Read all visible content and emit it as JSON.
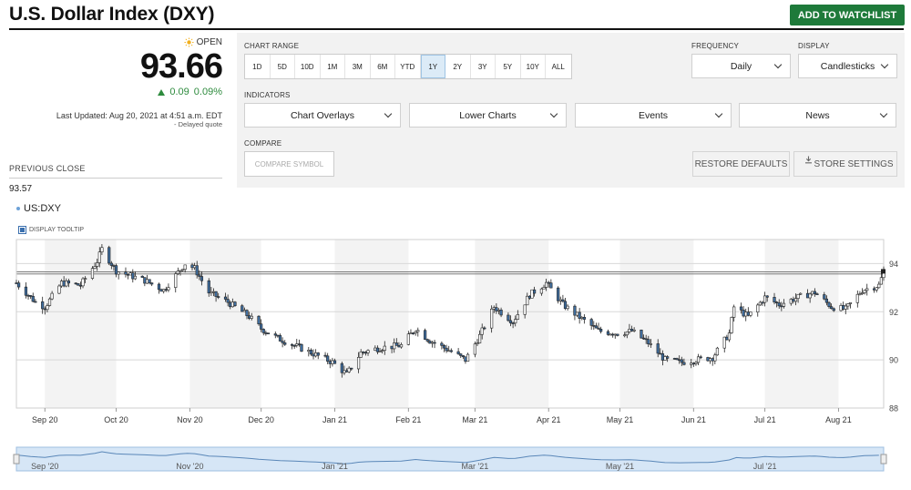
{
  "header": {
    "title": "U.S. Dollar Index (DXY)",
    "watchlist_label": "ADD TO WATCHLIST"
  },
  "quote": {
    "status": "OPEN",
    "price": "93.66",
    "change": "0.09",
    "change_pct": "0.09%",
    "updated": "Last Updated: Aug 20, 2021 at 4:51 a.m. EDT",
    "delayed": "- Delayed quote",
    "prev_close_label": "PREVIOUS CLOSE",
    "prev_close_value": "93.57"
  },
  "controls": {
    "chart_range_label": "CHART RANGE",
    "ranges": [
      "1D",
      "5D",
      "10D",
      "1M",
      "3M",
      "6M",
      "YTD",
      "1Y",
      "2Y",
      "3Y",
      "5Y",
      "10Y",
      "ALL"
    ],
    "active_range": "1Y",
    "frequency_label": "FREQUENCY",
    "frequency_value": "Daily",
    "display_label": "DISPLAY",
    "display_value": "Candlesticks",
    "indicators_label": "INDICATORS",
    "indicators": [
      "Chart Overlays",
      "Lower Charts",
      "Events",
      "News"
    ],
    "compare_label": "COMPARE",
    "compare_placeholder": "COMPARE SYMBOL",
    "restore_label": "RESTORE DEFAULTS",
    "store_label": "STORE SETTINGS"
  },
  "symbol": "US:DXY",
  "tooltip_label": "DISPLAY TOOLTIP",
  "colors": {
    "accent_green": "#1e7a3a",
    "up_green": "#2e8b3e",
    "candle_up": "#ffffff",
    "candle_down": "#3f6d9e",
    "navigator_fill": "#d6e6f6"
  },
  "chart_data": {
    "type": "candlestick",
    "x_start": "2020-08-20",
    "x_end": "2021-08-20",
    "ylim": [
      88,
      95
    ],
    "y_ticks": [
      88,
      90,
      92,
      94
    ],
    "x_tick_labels": [
      "Sep 20",
      "Oct 20",
      "Nov 20",
      "Dec 20",
      "Jan 21",
      "Feb 21",
      "Mar 21",
      "Apr 21",
      "May 21",
      "Jun 21",
      "Jul 21",
      "Aug 21"
    ],
    "x_tick_dates": [
      "2020-09-01",
      "2020-10-01",
      "2020-11-01",
      "2020-12-01",
      "2021-01-01",
      "2021-02-01",
      "2021-03-01",
      "2021-04-01",
      "2021-05-01",
      "2021-06-01",
      "2021-07-01",
      "2021-08-01"
    ],
    "reference_lines": [
      93.57,
      93.66
    ],
    "grid": true,
    "series": [
      {
        "name": "US:DXY",
        "points": [
          [
            "2020-08-20",
            93.2
          ],
          [
            "2020-08-28",
            92.4
          ],
          [
            "2020-09-01",
            92.2
          ],
          [
            "2020-09-08",
            93.2
          ],
          [
            "2020-09-16",
            93.1
          ],
          [
            "2020-09-23",
            94.1
          ],
          [
            "2020-09-25",
            94.6
          ],
          [
            "2020-10-01",
            93.7
          ],
          [
            "2020-10-07",
            93.5
          ],
          [
            "2020-10-13",
            93.3
          ],
          [
            "2020-10-21",
            92.9
          ],
          [
            "2020-10-30",
            94.0
          ],
          [
            "2020-11-03",
            93.8
          ],
          [
            "2020-11-09",
            92.8
          ],
          [
            "2020-11-17",
            92.4
          ],
          [
            "2020-11-26",
            91.8
          ],
          [
            "2020-12-01",
            91.3
          ],
          [
            "2020-12-08",
            90.9
          ],
          [
            "2020-12-15",
            90.6
          ],
          [
            "2020-12-22",
            90.3
          ],
          [
            "2020-12-31",
            89.9
          ],
          [
            "2021-01-06",
            89.4
          ],
          [
            "2021-01-12",
            90.3
          ],
          [
            "2021-01-20",
            90.5
          ],
          [
            "2021-01-29",
            90.6
          ],
          [
            "2021-02-04",
            91.3
          ],
          [
            "2021-02-10",
            90.8
          ],
          [
            "2021-02-18",
            90.4
          ],
          [
            "2021-02-25",
            90.0
          ],
          [
            "2021-03-03",
            91.0
          ],
          [
            "2021-03-09",
            92.2
          ],
          [
            "2021-03-17",
            91.6
          ],
          [
            "2021-03-24",
            92.7
          ],
          [
            "2021-03-31",
            93.2
          ],
          [
            "2021-04-07",
            92.3
          ],
          [
            "2021-04-15",
            91.7
          ],
          [
            "2021-04-22",
            91.2
          ],
          [
            "2021-04-30",
            91.1
          ],
          [
            "2021-05-06",
            91.2
          ],
          [
            "2021-05-13",
            90.7
          ],
          [
            "2021-05-20",
            90.0
          ],
          [
            "2021-05-27",
            89.9
          ],
          [
            "2021-06-02",
            90.0
          ],
          [
            "2021-06-09",
            90.1
          ],
          [
            "2021-06-16",
            91.1
          ],
          [
            "2021-06-18",
            92.2
          ],
          [
            "2021-06-24",
            91.8
          ],
          [
            "2021-07-01",
            92.6
          ],
          [
            "2021-07-07",
            92.3
          ],
          [
            "2021-07-15",
            92.6
          ],
          [
            "2021-07-22",
            92.8
          ],
          [
            "2021-07-29",
            92.2
          ],
          [
            "2021-08-04",
            92.1
          ],
          [
            "2021-08-11",
            92.9
          ],
          [
            "2021-08-18",
            93.1
          ],
          [
            "2021-08-20",
            93.66
          ]
        ]
      }
    ],
    "navigator_tick_labels": [
      "Sep '20",
      "Nov '20",
      "Jan '21",
      "Mar '21",
      "May '21",
      "Jul '21"
    ],
    "navigator_tick_dates": [
      "2020-09-01",
      "2020-11-01",
      "2021-01-01",
      "2021-03-01",
      "2021-05-01",
      "2021-07-01"
    ]
  }
}
